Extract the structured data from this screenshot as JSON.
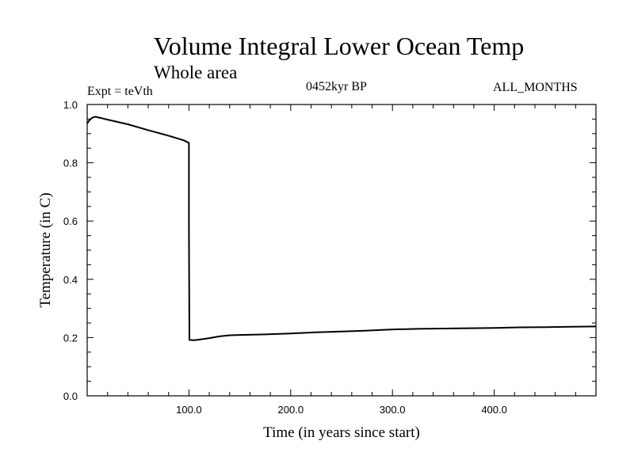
{
  "header": {
    "title": "Volume Integral Lower Ocean Temp",
    "subtitle": "Whole area",
    "experiment": "Expt = teVth",
    "period": "0452kyr BP",
    "months": "ALL_MONTHS"
  },
  "chart_data": {
    "type": "line",
    "xlabel": "Time (in years since start)",
    "ylabel": "Temperature (in C)",
    "xlim": [
      0,
      500
    ],
    "ylim": [
      0.0,
      1.0
    ],
    "x_ticks": [
      100,
      200,
      300,
      400
    ],
    "x_tick_labels": [
      "100.0",
      "200.0",
      "300.0",
      "400.0"
    ],
    "y_ticks": [
      0.0,
      0.2,
      0.4,
      0.6,
      0.8,
      1.0
    ],
    "y_tick_labels": [
      "0.0",
      "0.2",
      "0.4",
      "0.6",
      "0.8",
      "1.0"
    ],
    "grid": false,
    "series": [
      {
        "x": [
          0,
          2,
          5,
          8,
          12,
          20,
          40,
          60,
          80,
          95,
          99,
          100,
          100,
          100.5,
          105,
          110,
          120,
          130,
          140,
          150,
          175,
          200,
          225,
          250,
          275,
          300,
          325,
          350,
          375,
          400,
          425,
          450,
          475,
          500
        ],
        "y": [
          0.935,
          0.945,
          0.955,
          0.958,
          0.955,
          0.948,
          0.932,
          0.912,
          0.893,
          0.877,
          0.87,
          0.868,
          0.58,
          0.192,
          0.191,
          0.193,
          0.198,
          0.204,
          0.208,
          0.209,
          0.211,
          0.214,
          0.218,
          0.221,
          0.224,
          0.228,
          0.23,
          0.231,
          0.232,
          0.233,
          0.235,
          0.236,
          0.237,
          0.238
        ]
      }
    ]
  }
}
